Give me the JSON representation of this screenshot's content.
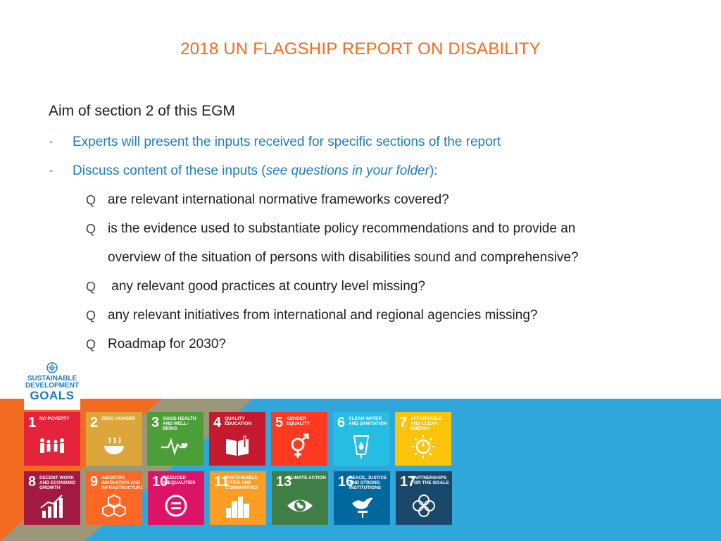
{
  "title": "2018 UN FLAGSHIP REPORT ON DISABILITY",
  "heading": "Aim of section 2 of this EGM",
  "bullets": [
    {
      "marker": "-",
      "text": "Experts will present the inputs received for specific sections of the report"
    },
    {
      "marker": "-",
      "text_before": "Discuss content of these inputs (",
      "text_italic": "see questions in your folder",
      "text_after": "):"
    }
  ],
  "questions": [
    {
      "marker": "Q",
      "text": "are relevant international normative frameworks covered?"
    },
    {
      "marker": "Q",
      "text": "is the evidence used to substantiate policy recommendations and to provide an",
      "continuation": "overview of the situation of persons with disabilities sound and comprehensive?"
    },
    {
      "marker": "Q",
      "text": " any relevant good practices at country level missing?"
    },
    {
      "marker": "Q",
      "text": "any relevant initiatives from international and regional agencies missing?"
    },
    {
      "marker": "Q",
      "text": "Roadmap for 2030?"
    }
  ],
  "sdg_logo": {
    "line1": "SUSTAINABLE",
    "line2": "DEVELOPMENT",
    "line3": "GOALS",
    "icon": "un-emblem-icon"
  },
  "colors": {
    "title": "#f26b21",
    "bullets": "#1b7db8",
    "band_orange": "#f26b21",
    "band_blue": "#2fa7da"
  },
  "goals": [
    {
      "num": "1",
      "label": "NO POVERTY",
      "color": "#e5243b",
      "icon": "family-icon"
    },
    {
      "num": "2",
      "label": "ZERO HUNGER",
      "color": "#dda63a",
      "icon": "bowl-icon"
    },
    {
      "num": "3",
      "label": "GOOD HEALTH AND WELL-BEING",
      "color": "#4c9f38",
      "icon": "heartbeat-icon"
    },
    {
      "num": "4",
      "label": "QUALITY EDUCATION",
      "color": "#c5192d",
      "icon": "book-icon"
    },
    {
      "num": "5",
      "label": "GENDER EQUALITY",
      "color": "#ff3a21",
      "icon": "gender-icon"
    },
    {
      "num": "6",
      "label": "CLEAN WATER AND SANITATION",
      "color": "#26bde2",
      "icon": "water-drop-icon"
    },
    {
      "num": "7",
      "label": "AFFORDABLE AND CLEAN ENERGY",
      "color": "#fcc30b",
      "icon": "sun-power-icon"
    },
    {
      "num": "8",
      "label": "DECENT WORK AND ECONOMIC GROWTH",
      "color": "#a21942",
      "icon": "growth-chart-icon"
    },
    {
      "num": "9",
      "label": "INDUSTRY, INNOVATION AND INFRASTRUCTURE",
      "color": "#fd6925",
      "icon": "cubes-icon"
    },
    {
      "num": "10",
      "label": "REDUCED INEQUALITIES",
      "color": "#dd1367",
      "icon": "equal-icon"
    },
    {
      "num": "11",
      "label": "SUSTAINABLE CITIES AND COMMUNITIES",
      "color": "#fd9d24",
      "icon": "buildings-icon"
    },
    {
      "num": "13",
      "label": "CLIMATE ACTION",
      "color": "#3f7e44",
      "icon": "eye-globe-icon"
    },
    {
      "num": "16",
      "label": "PEACE, JUSTICE AND STRONG INSTITUTIONS",
      "color": "#00689d",
      "icon": "dove-icon"
    },
    {
      "num": "17",
      "label": "PARTNERSHIPS FOR THE GOALS",
      "color": "#19486a",
      "icon": "rings-icon"
    }
  ]
}
